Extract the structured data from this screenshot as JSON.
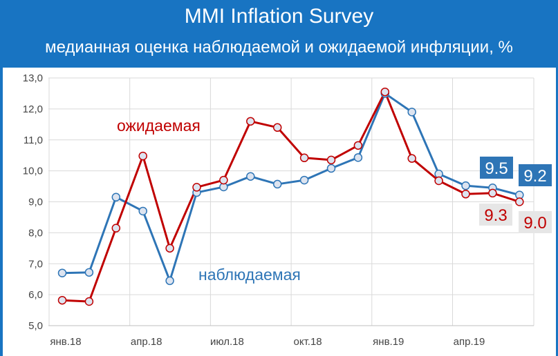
{
  "header": {
    "title": "MMI Inflation Survey",
    "subtitle": "медианная оценка наблюдаемой и ожидаемой инфляции, %"
  },
  "colors": {
    "frame": "#1874c2",
    "observed": "#2e75b6",
    "expected": "#c00000",
    "marker_fill": "#dde4f0",
    "grid": "#d9d9d9",
    "badge_observed_bg": "#2e75b6",
    "badge_expected_bg": "#e6e6e6"
  },
  "chart_data": {
    "type": "line",
    "ylim": [
      5,
      13
    ],
    "yticks": [
      "5,0",
      "6,0",
      "7,0",
      "8,0",
      "9,0",
      "10,0",
      "11,0",
      "12,0",
      "13,0"
    ],
    "xticks": [
      "янв.18",
      "апр.18",
      "июл.18",
      "окт.18",
      "янв.19",
      "апр.19"
    ],
    "x": [
      "янв.18",
      "фев.18",
      "мар.18",
      "апр.18",
      "май.18",
      "июн.18",
      "июл.18",
      "авг.18",
      "сен.18",
      "окт.18",
      "ноя.18",
      "дек.18",
      "янв.19",
      "фев.19",
      "мар.19",
      "апр.19",
      "май.19",
      "июн.19"
    ],
    "grid": true,
    "series": [
      {
        "name": "наблюдаемая",
        "values": [
          6.7,
          6.72,
          9.15,
          8.7,
          6.45,
          9.3,
          9.48,
          9.82,
          9.57,
          9.7,
          10.08,
          10.43,
          12.5,
          11.9,
          9.9,
          9.52,
          9.45,
          9.22
        ]
      },
      {
        "name": "ожидаемая",
        "values": [
          5.82,
          5.78,
          8.15,
          10.48,
          7.5,
          9.47,
          9.7,
          11.6,
          11.4,
          10.42,
          10.35,
          10.82,
          12.55,
          10.4,
          9.68,
          9.25,
          9.28,
          9.0
        ]
      }
    ],
    "last_labels": {
      "observed": [
        "9.5",
        "9.2"
      ],
      "expected": [
        "9.3",
        "9.0"
      ]
    }
  }
}
